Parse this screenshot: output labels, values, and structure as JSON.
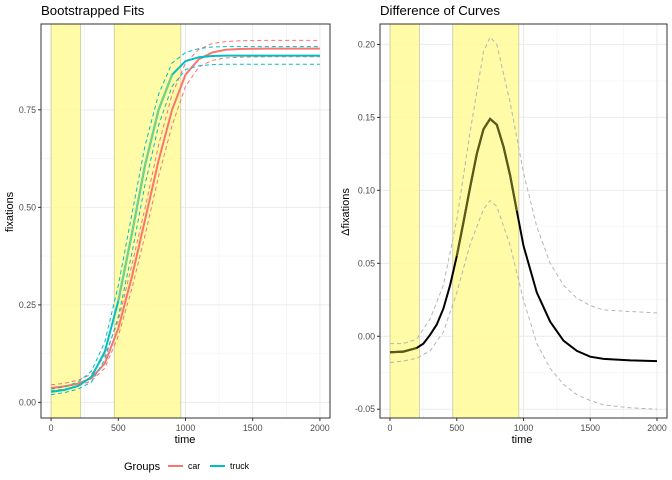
{
  "legend": {
    "title": "Groups",
    "items": [
      {
        "label": "car",
        "color": "#F8766D"
      },
      {
        "label": "truck",
        "color": "#00BFC4"
      }
    ]
  },
  "chart_data": [
    {
      "type": "line",
      "title": "Bootstrapped Fits",
      "xlabel": "time",
      "ylabel": "fixations",
      "xlim": [
        -75,
        2075
      ],
      "ylim": [
        -0.04,
        0.97
      ],
      "xticks": [
        0,
        500,
        1000,
        1500,
        2000
      ],
      "yticks": [
        0.0,
        0.25,
        0.5,
        0.75
      ],
      "ytick_labels": [
        "0.00",
        "0.25",
        "0.50",
        "0.75"
      ],
      "highlight_bands": [
        [
          0,
          220
        ],
        [
          470,
          965
        ]
      ],
      "overlap_color": "#71D383",
      "series": [
        {
          "name": "car",
          "color": "#F8766D",
          "points": [
            [
              0,
              0.037
            ],
            [
              100,
              0.041
            ],
            [
              200,
              0.048
            ],
            [
              300,
              0.062
            ],
            [
              400,
              0.1
            ],
            [
              500,
              0.19
            ],
            [
              600,
              0.32
            ],
            [
              700,
              0.47
            ],
            [
              800,
              0.62
            ],
            [
              900,
              0.75
            ],
            [
              1000,
              0.84
            ],
            [
              1100,
              0.88
            ],
            [
              1200,
              0.897
            ],
            [
              1300,
              0.904
            ],
            [
              1400,
              0.906
            ],
            [
              1600,
              0.907
            ],
            [
              2000,
              0.907
            ]
          ],
          "upper": [
            [
              0,
              0.045
            ],
            [
              100,
              0.049
            ],
            [
              200,
              0.057
            ],
            [
              300,
              0.072
            ],
            [
              400,
              0.12
            ],
            [
              500,
              0.21
            ],
            [
              600,
              0.35
            ],
            [
              700,
              0.5
            ],
            [
              800,
              0.66
            ],
            [
              900,
              0.79
            ],
            [
              1000,
              0.87
            ],
            [
              1100,
              0.905
            ],
            [
              1200,
              0.92
            ],
            [
              1300,
              0.925
            ],
            [
              1400,
              0.927
            ],
            [
              1600,
              0.928
            ],
            [
              2000,
              0.928
            ]
          ],
          "lower": [
            [
              0,
              0.03
            ],
            [
              100,
              0.034
            ],
            [
              200,
              0.042
            ],
            [
              300,
              0.055
            ],
            [
              400,
              0.088
            ],
            [
              500,
              0.17
            ],
            [
              600,
              0.29
            ],
            [
              700,
              0.43
            ],
            [
              800,
              0.58
            ],
            [
              900,
              0.71
            ],
            [
              1000,
              0.81
            ],
            [
              1100,
              0.86
            ],
            [
              1200,
              0.877
            ],
            [
              1300,
              0.883
            ],
            [
              1400,
              0.885
            ],
            [
              1600,
              0.886
            ],
            [
              2000,
              0.886
            ]
          ]
        },
        {
          "name": "truck",
          "color": "#00BFC4",
          "points": [
            [
              0,
              0.027
            ],
            [
              100,
              0.032
            ],
            [
              200,
              0.042
            ],
            [
              300,
              0.065
            ],
            [
              400,
              0.13
            ],
            [
              500,
              0.26
            ],
            [
              600,
              0.43
            ],
            [
              700,
              0.61
            ],
            [
              800,
              0.75
            ],
            [
              900,
              0.84
            ],
            [
              1000,
              0.875
            ],
            [
              1100,
              0.885
            ],
            [
              1200,
              0.888
            ],
            [
              1300,
              0.889
            ],
            [
              1600,
              0.889
            ],
            [
              2000,
              0.889
            ]
          ],
          "upper": [
            [
              0,
              0.034
            ],
            [
              100,
              0.04
            ],
            [
              200,
              0.052
            ],
            [
              300,
              0.08
            ],
            [
              400,
              0.155
            ],
            [
              500,
              0.3
            ],
            [
              600,
              0.48
            ],
            [
              700,
              0.66
            ],
            [
              800,
              0.79
            ],
            [
              900,
              0.87
            ],
            [
              1000,
              0.897
            ],
            [
              1100,
              0.907
            ],
            [
              1200,
              0.911
            ],
            [
              1300,
              0.912
            ],
            [
              1600,
              0.912
            ],
            [
              2000,
              0.912
            ]
          ],
          "lower": [
            [
              0,
              0.02
            ],
            [
              100,
              0.025
            ],
            [
              200,
              0.034
            ],
            [
              300,
              0.052
            ],
            [
              400,
              0.11
            ],
            [
              500,
              0.22
            ],
            [
              600,
              0.38
            ],
            [
              700,
              0.56
            ],
            [
              800,
              0.71
            ],
            [
              900,
              0.81
            ],
            [
              1000,
              0.853
            ],
            [
              1100,
              0.863
            ],
            [
              1200,
              0.866
            ],
            [
              1300,
              0.867
            ],
            [
              1600,
              0.867
            ],
            [
              2000,
              0.867
            ]
          ]
        }
      ]
    },
    {
      "type": "line",
      "title": "Difference of Curves",
      "xlabel": "time",
      "ylabel": "Δfixations",
      "xlim": [
        -75,
        2075
      ],
      "ylim": [
        -0.056,
        0.214
      ],
      "xticks": [
        0,
        500,
        1000,
        1500,
        2000
      ],
      "yticks": [
        -0.05,
        0.0,
        0.05,
        0.1,
        0.15,
        0.2
      ],
      "ytick_labels": [
        "-0.05",
        "0.00",
        "0.05",
        "0.10",
        "0.15",
        "0.20"
      ],
      "highlight_bands": [
        [
          0,
          220
        ],
        [
          470,
          965
        ]
      ],
      "series": [
        {
          "color": "#000000",
          "points": [
            [
              0,
              -0.011
            ],
            [
              100,
              -0.0105
            ],
            [
              200,
              -0.008
            ],
            [
              250,
              -0.005
            ],
            [
              300,
              0.001
            ],
            [
              350,
              0.008
            ],
            [
              400,
              0.019
            ],
            [
              450,
              0.035
            ],
            [
              500,
              0.055
            ],
            [
              550,
              0.078
            ],
            [
              600,
              0.102
            ],
            [
              650,
              0.125
            ],
            [
              700,
              0.142
            ],
            [
              750,
              0.149
            ],
            [
              800,
              0.145
            ],
            [
              850,
              0.13
            ],
            [
              900,
              0.11
            ],
            [
              950,
              0.086
            ],
            [
              1000,
              0.062
            ],
            [
              1100,
              0.03
            ],
            [
              1200,
              0.01
            ],
            [
              1300,
              -0.003
            ],
            [
              1400,
              -0.01
            ],
            [
              1500,
              -0.014
            ],
            [
              1600,
              -0.0155
            ],
            [
              1800,
              -0.0165
            ],
            [
              2000,
              -0.017
            ]
          ],
          "upper": [
            [
              0,
              -0.005
            ],
            [
              100,
              -0.005
            ],
            [
              200,
              -0.002
            ],
            [
              300,
              0.012
            ],
            [
              400,
              0.035
            ],
            [
              500,
              0.08
            ],
            [
              600,
              0.14
            ],
            [
              700,
              0.195
            ],
            [
              750,
              0.205
            ],
            [
              800,
              0.2
            ],
            [
              900,
              0.16
            ],
            [
              1000,
              0.112
            ],
            [
              1100,
              0.075
            ],
            [
              1200,
              0.05
            ],
            [
              1300,
              0.035
            ],
            [
              1400,
              0.026
            ],
            [
              1500,
              0.021
            ],
            [
              1600,
              0.018
            ],
            [
              1800,
              0.017
            ],
            [
              2000,
              0.016
            ]
          ],
          "lower": [
            [
              0,
              -0.018
            ],
            [
              100,
              -0.017
            ],
            [
              200,
              -0.015
            ],
            [
              300,
              -0.01
            ],
            [
              400,
              0.003
            ],
            [
              500,
              0.03
            ],
            [
              600,
              0.063
            ],
            [
              700,
              0.087
            ],
            [
              750,
              0.093
            ],
            [
              800,
              0.089
            ],
            [
              900,
              0.062
            ],
            [
              1000,
              0.025
            ],
            [
              1100,
              -0.005
            ],
            [
              1200,
              -0.022
            ],
            [
              1300,
              -0.033
            ],
            [
              1400,
              -0.04
            ],
            [
              1500,
              -0.044
            ],
            [
              1600,
              -0.047
            ],
            [
              1800,
              -0.049
            ],
            [
              2000,
              -0.05
            ]
          ]
        }
      ]
    }
  ]
}
